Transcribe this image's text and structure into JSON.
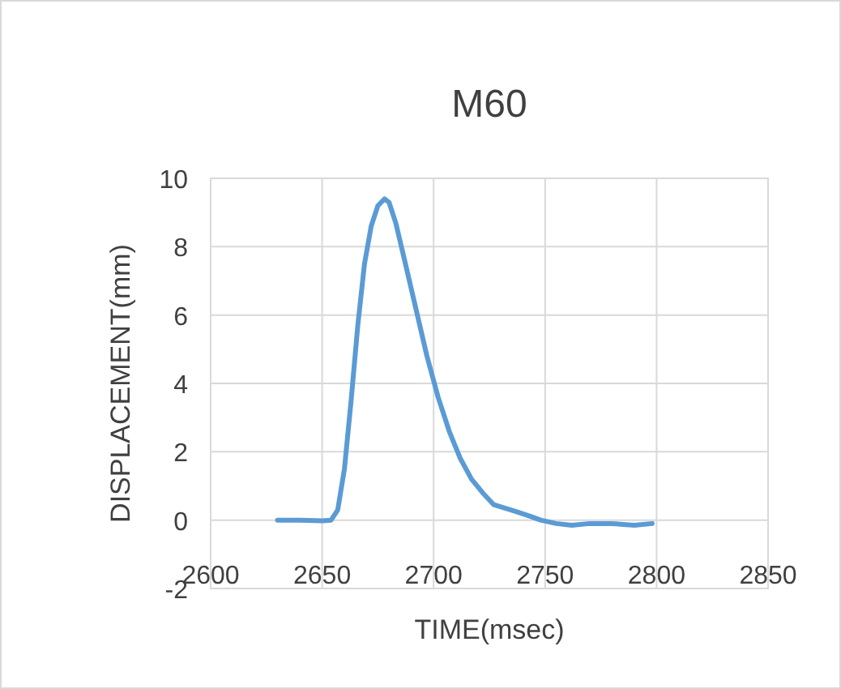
{
  "chart_data": {
    "type": "line",
    "title": "M60",
    "xlabel": "TIME(msec)",
    "ylabel": "DISPLACEMENT(mm)",
    "xlim": [
      2600,
      2850
    ],
    "xticks": [
      2600,
      2650,
      2700,
      2750,
      2800,
      2850
    ],
    "ylim": [
      -2,
      10
    ],
    "yticks": [
      -2,
      0,
      2,
      4,
      6,
      8,
      10
    ],
    "grid": true,
    "marker": "none",
    "line_style": "solid",
    "series": [
      {
        "color": "#5b9bd5",
        "x": [
          2630,
          2640,
          2650,
          2654,
          2657,
          2660,
          2663,
          2666,
          2669,
          2672,
          2675,
          2678,
          2680,
          2683,
          2687,
          2692,
          2697,
          2702,
          2707,
          2712,
          2717,
          2722,
          2727,
          2732,
          2737,
          2743,
          2748,
          2755,
          2762,
          2770,
          2780,
          2790,
          2798
        ],
        "values": [
          0,
          0,
          -0.02,
          0,
          0.3,
          1.5,
          3.5,
          5.7,
          7.5,
          8.6,
          9.2,
          9.4,
          9.3,
          8.7,
          7.6,
          6.2,
          4.8,
          3.6,
          2.6,
          1.8,
          1.2,
          0.8,
          0.45,
          0.35,
          0.25,
          0.12,
          0,
          -0.1,
          -0.15,
          -0.1,
          -0.1,
          -0.15,
          -0.1
        ]
      }
    ]
  }
}
